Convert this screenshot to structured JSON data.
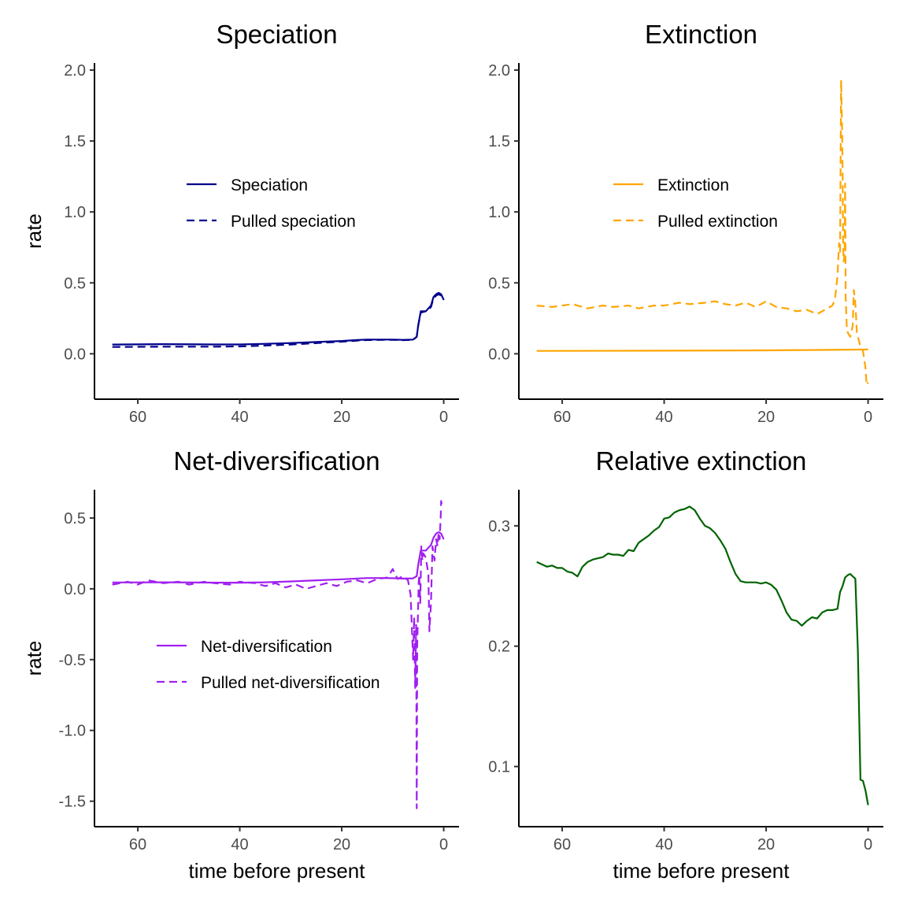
{
  "chart_data": [
    {
      "type": "line",
      "title": "Speciation",
      "xlabel": "",
      "ylabel": "rate",
      "xlim": [
        68.5,
        -3
      ],
      "ylim": [
        -0.32,
        2.05
      ],
      "xticks": [
        "60",
        "40",
        "20",
        "0"
      ],
      "yticks": [
        "0.0",
        "0.5",
        "1.0",
        "1.5",
        "2.0"
      ],
      "legend_position": "center-left",
      "series": [
        {
          "name": "Speciation",
          "color": "#00008b",
          "dash": "solid",
          "x": [
            65,
            55,
            45,
            40,
            35,
            30,
            25,
            20,
            17,
            15,
            12,
            10,
            8,
            6,
            5.3,
            5,
            4.5,
            3.5,
            3,
            2.5,
            2,
            1.5,
            1,
            0.5,
            0
          ],
          "y": [
            0.065,
            0.068,
            0.066,
            0.066,
            0.07,
            0.076,
            0.083,
            0.09,
            0.097,
            0.1,
            0.1,
            0.1,
            0.098,
            0.1,
            0.12,
            0.2,
            0.3,
            0.3,
            0.32,
            0.34,
            0.4,
            0.42,
            0.43,
            0.42,
            0.38
          ]
        },
        {
          "name": "Pulled speciation",
          "color": "#00008b",
          "dash": "dashed",
          "x": [
            65,
            55,
            45,
            40,
            35,
            30,
            25,
            20,
            17,
            15,
            12,
            10,
            8,
            6,
            5.3,
            5,
            4.5,
            3.5,
            3,
            2.5,
            2,
            1.5,
            1,
            0.5,
            0
          ],
          "y": [
            0.048,
            0.05,
            0.05,
            0.052,
            0.058,
            0.065,
            0.075,
            0.085,
            0.093,
            0.097,
            0.098,
            0.098,
            0.096,
            0.098,
            0.12,
            0.2,
            0.29,
            0.3,
            0.31,
            0.33,
            0.39,
            0.41,
            0.42,
            0.41,
            0.38
          ]
        }
      ]
    },
    {
      "type": "line",
      "title": "Extinction",
      "xlabel": "",
      "ylabel": "",
      "xlim": [
        68.5,
        -3
      ],
      "ylim": [
        -0.32,
        2.05
      ],
      "xticks": [
        "60",
        "40",
        "20",
        "0"
      ],
      "yticks": [
        "0.0",
        "0.5",
        "1.0",
        "1.5",
        "2.0"
      ],
      "legend_position": "center-left",
      "series": [
        {
          "name": "Extinction",
          "color": "#ffa500",
          "dash": "solid",
          "x": [
            65,
            40,
            20,
            10,
            0
          ],
          "y": [
            0.02,
            0.022,
            0.024,
            0.027,
            0.03
          ]
        },
        {
          "name": "Pulled extinction",
          "color": "#ffa500",
          "dash": "dashed",
          "x": [
            65,
            62,
            58,
            55,
            52,
            50,
            47,
            45,
            42,
            40,
            37,
            35,
            32,
            30,
            28,
            26,
            24,
            22,
            20,
            18,
            16,
            14,
            12,
            10,
            9,
            8,
            7,
            6.5,
            6,
            5.7,
            5.5,
            5.3,
            5.1,
            5,
            4.9,
            4.8,
            4.6,
            4.5,
            4.4,
            4.2,
            4,
            3.5,
            3,
            2.8,
            2.6,
            2.4,
            2.2,
            2,
            1.5,
            1,
            0.5,
            0.3,
            0
          ],
          "y": [
            0.34,
            0.33,
            0.35,
            0.32,
            0.34,
            0.33,
            0.34,
            0.32,
            0.34,
            0.34,
            0.36,
            0.35,
            0.36,
            0.37,
            0.35,
            0.34,
            0.36,
            0.33,
            0.37,
            0.33,
            0.32,
            0.3,
            0.31,
            0.28,
            0.3,
            0.32,
            0.34,
            0.38,
            0.55,
            0.78,
            0.72,
            1.93,
            1.6,
            1.3,
            0.8,
            0.65,
            0.7,
            1.2,
            0.4,
            0.2,
            0.15,
            0.12,
            0.2,
            0.45,
            0.4,
            0.3,
            0.15,
            0.12,
            0.05,
            0.02,
            -0.1,
            -0.22,
            -0.2
          ]
        }
      ]
    },
    {
      "type": "line",
      "title": "Net-diversification",
      "xlabel": "time before present",
      "ylabel": "rate",
      "xlim": [
        68.5,
        -3
      ],
      "ylim": [
        -1.68,
        0.7
      ],
      "xticks": [
        "60",
        "40",
        "20",
        "0"
      ],
      "yticks": [
        "-1.5",
        "-1.0",
        "-0.5",
        "0.0",
        "0.5"
      ],
      "legend_position": "bottom-left",
      "series": [
        {
          "name": "Net-diversification",
          "color": "#a020f0",
          "dash": "solid",
          "x": [
            65,
            55,
            45,
            40,
            35,
            30,
            25,
            20,
            17,
            15,
            12,
            10,
            8,
            6,
            5.3,
            5,
            4.5,
            3.5,
            3,
            2.5,
            2,
            1.5,
            1,
            0.5,
            0
          ],
          "y": [
            0.045,
            0.046,
            0.044,
            0.043,
            0.046,
            0.052,
            0.06,
            0.067,
            0.073,
            0.076,
            0.076,
            0.075,
            0.072,
            0.074,
            0.09,
            0.17,
            0.27,
            0.27,
            0.29,
            0.31,
            0.36,
            0.39,
            0.4,
            0.39,
            0.35
          ]
        },
        {
          "name": "Pulled net-diversification",
          "color": "#a020f0",
          "dash": "dashed",
          "x": [
            65,
            62,
            60,
            58,
            55,
            52,
            50,
            47,
            45,
            42,
            40,
            37,
            35,
            33,
            31,
            29,
            27,
            25,
            23,
            21,
            19,
            17,
            15,
            13,
            11,
            10,
            9.5,
            9,
            8,
            7,
            6.5,
            6,
            5.8,
            5.6,
            5.4,
            5.3,
            5.2,
            5,
            4.9,
            4.8,
            4.6,
            4.4,
            4.2,
            4,
            3.5,
            3,
            2.8,
            2.5,
            2.2,
            2,
            1.8,
            1.5,
            1.2,
            1,
            0.8,
            0.6,
            0.5,
            0.3,
            0
          ],
          "y": [
            0.03,
            0.05,
            0.03,
            0.06,
            0.04,
            0.05,
            0.03,
            0.05,
            0.04,
            0.03,
            0.05,
            0.04,
            0.02,
            0.04,
            0.01,
            0.03,
            0.0,
            0.02,
            0.04,
            0.02,
            0.05,
            0.06,
            0.04,
            0.07,
            0.08,
            0.14,
            0.1,
            0.07,
            0.09,
            0.06,
            -0.04,
            -0.5,
            -0.2,
            -0.7,
            -0.25,
            -1.55,
            -0.4,
            -0.1,
            0.05,
            0.1,
            -0.1,
            0.3,
            0.2,
            0.25,
            0.22,
            0.1,
            -0.3,
            -0.1,
            0.3,
            0.25,
            0.2,
            0.35,
            0.3,
            0.4,
            0.35,
            0.5,
            0.62,
            0.58,
            0.58
          ]
        }
      ]
    },
    {
      "type": "line",
      "title": "Relative extinction",
      "xlabel": "time before present",
      "ylabel": "",
      "xlim": [
        68.5,
        -3
      ],
      "ylim": [
        0.05,
        0.33
      ],
      "xticks": [
        "60",
        "40",
        "20",
        "0"
      ],
      "yticks": [
        "0.1",
        "0.2",
        "0.3"
      ],
      "legend_position": "none",
      "series": [
        {
          "name": "Relative extinction",
          "color": "#006400",
          "dash": "solid",
          "x": [
            65,
            64,
            63,
            62,
            61,
            60,
            59,
            58,
            57,
            56,
            55,
            54,
            53,
            52,
            51,
            50,
            49,
            48,
            47,
            46,
            45,
            44,
            43,
            42,
            41,
            40,
            39,
            38,
            37,
            36,
            35,
            34,
            33,
            32,
            31,
            30,
            29,
            28,
            27,
            26,
            25,
            24,
            23,
            22,
            21,
            20,
            19,
            18,
            17,
            16,
            15,
            14,
            13,
            12,
            11,
            10,
            9,
            8,
            7,
            6,
            5.5,
            5,
            4.5,
            4,
            3.5,
            3,
            2.5,
            2,
            1.5,
            1,
            0.5,
            0
          ],
          "y": [
            0.27,
            0.268,
            0.266,
            0.267,
            0.265,
            0.265,
            0.262,
            0.261,
            0.258,
            0.266,
            0.27,
            0.272,
            0.273,
            0.274,
            0.277,
            0.276,
            0.276,
            0.275,
            0.28,
            0.279,
            0.286,
            0.289,
            0.292,
            0.296,
            0.299,
            0.306,
            0.307,
            0.311,
            0.313,
            0.314,
            0.316,
            0.313,
            0.306,
            0.3,
            0.298,
            0.294,
            0.288,
            0.281,
            0.27,
            0.26,
            0.254,
            0.253,
            0.253,
            0.253,
            0.252,
            0.253,
            0.251,
            0.247,
            0.238,
            0.228,
            0.222,
            0.221,
            0.217,
            0.221,
            0.224,
            0.223,
            0.228,
            0.23,
            0.23,
            0.231,
            0.245,
            0.25,
            0.257,
            0.259,
            0.26,
            0.258,
            0.256,
            0.196,
            0.089,
            0.088,
            0.08,
            0.068
          ]
        }
      ]
    }
  ]
}
